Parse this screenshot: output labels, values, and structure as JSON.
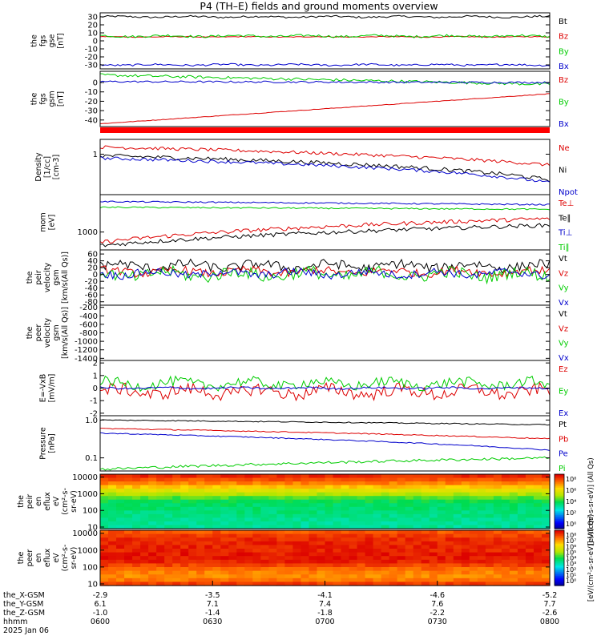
{
  "title": "P4 (TH–E) fields and ground moments overview",
  "x_axis": {
    "row_labels": [
      "the_X-GSM",
      "the_Y-GSM",
      "the_Z-GSM",
      "hhmm",
      "2025 Jan 06"
    ],
    "ticks": [
      {
        "x": "-2.9",
        "y": "6.1",
        "z": "-1.0",
        "t": "0600"
      },
      {
        "x": "-3.5",
        "y": "7.1",
        "z": "-1.4",
        "t": "0630"
      },
      {
        "x": "-4.1",
        "y": "7.4",
        "z": "-1.8",
        "t": "0700"
      },
      {
        "x": "-4.6",
        "y": "7.6",
        "z": "-2.2",
        "t": "0730"
      },
      {
        "x": "-5.2",
        "y": "7.7",
        "z": "-2.6",
        "t": "0800"
      }
    ]
  },
  "chart_data": [
    {
      "type": "line",
      "ylabel": [
        "the",
        "fgs",
        "gse",
        "[nT]"
      ],
      "ylim": [
        -35,
        35
      ],
      "yticks": [
        "30",
        "20",
        "10",
        "0",
        "-10",
        "-20",
        "-30"
      ],
      "ytick_values": [
        30,
        20,
        10,
        0,
        -10,
        -20,
        -30
      ],
      "series": [
        {
          "name": "Bt",
          "color": "#000000",
          "level": 30,
          "wiggle": 1.2
        },
        {
          "name": "Bz",
          "color": "#dd0000",
          "level": 5,
          "wiggle": 0.5
        },
        {
          "name": "By",
          "color": "#00cc00",
          "level": 6,
          "wiggle": 1.5
        },
        {
          "name": "Bx",
          "color": "#0000cc",
          "level": -30,
          "wiggle": 1.2
        }
      ]
    },
    {
      "type": "line",
      "ylabel": [
        "the",
        "fgs",
        "gsm",
        "[nT]"
      ],
      "ylim": [
        -47,
        12
      ],
      "yticks": [
        "0",
        "-10",
        "-20",
        "-30",
        "-40"
      ],
      "ytick_values": [
        0,
        -10,
        -20,
        -30,
        -40
      ],
      "series": [
        {
          "name": "Bz",
          "color": "#dd0000",
          "start": -44,
          "end": -12,
          "wiggle": 0.3
        },
        {
          "name": "By",
          "color": "#00cc00",
          "start": 8,
          "end": -2,
          "wiggle": 1.5
        },
        {
          "name": "Bx",
          "color": "#0000cc",
          "start": 1,
          "end": 0,
          "wiggle": 1.0
        }
      ]
    },
    {
      "type": "line",
      "ylabel": [
        "Density",
        "[1/cc]",
        "[cm-3]"
      ],
      "ylim": [
        0.05,
        3
      ],
      "yticks": [
        "1"
      ],
      "ytick_values": [
        1
      ],
      "series": [
        {
          "name": "Ne",
          "color": "#dd0000",
          "start": 1.7,
          "end": 0.45,
          "wiggle": 0.12
        },
        {
          "name": "Ni",
          "color": "#000000",
          "start": 0.9,
          "end": 0.15,
          "wiggle": 0.15
        },
        {
          "name": "Npot",
          "color": "#0000cc",
          "start": 0.75,
          "end": 0.12,
          "wiggle": 0.12
        }
      ]
    },
    {
      "type": "line",
      "ylabel": [
        "mom",
        "[eV]"
      ],
      "ylim": [
        350,
        9000
      ],
      "yticks": [
        "1000"
      ],
      "ytick_values": [
        1000
      ],
      "series": [
        {
          "name": "Te⊥",
          "color": "#dd0000",
          "start": 550,
          "end": 2200,
          "wiggle": 0.12
        },
        {
          "name": "Te∥",
          "color": "#000000",
          "start": 450,
          "end": 1500,
          "wiggle": 0.12
        },
        {
          "name": "Ti⊥",
          "color": "#0000cc",
          "start": 6000,
          "end": 5000,
          "wiggle": 0.04
        },
        {
          "name": "Ti∥",
          "color": "#00cc00",
          "start": 4300,
          "end": 3800,
          "wiggle": 0.04
        }
      ]
    },
    {
      "type": "line",
      "ylabel": [
        "the",
        "peir",
        "velocity",
        "gsm",
        "[km/s(All Qs)]"
      ],
      "ylim": [
        -90,
        72
      ],
      "yticks": [
        "60",
        "40",
        "20",
        "0",
        "-20",
        "-40",
        "-60",
        "-80"
      ],
      "ytick_values": [
        60,
        40,
        20,
        0,
        -20,
        -40,
        -60,
        -80
      ],
      "series": [
        {
          "name": "Vt",
          "color": "#000000",
          "level": 25,
          "wiggle": 14
        },
        {
          "name": "Vz",
          "color": "#dd0000",
          "level": 8,
          "wiggle": 12
        },
        {
          "name": "Vy",
          "color": "#00cc00",
          "level": 0,
          "wiggle": 18
        },
        {
          "name": "Vx",
          "color": "#0000cc",
          "level": 3,
          "wiggle": 12
        }
      ]
    },
    {
      "type": "line",
      "ylabel": [
        "the",
        "peer",
        "velocity",
        "gsm",
        "[km/s(All Qs)]"
      ],
      "ylim": [
        -1450,
        -150
      ],
      "yticks": [
        "-200",
        "-400",
        "-600",
        "-800",
        "-1000",
        "-1200",
        "-1400"
      ],
      "ytick_values": [
        -200,
        -400,
        -600,
        -800,
        -1000,
        -1200,
        -1400
      ],
      "series": [
        {
          "name": "Vt",
          "color": "#000000"
        },
        {
          "name": "Vz",
          "color": "#dd0000"
        },
        {
          "name": "Vy",
          "color": "#00cc00"
        },
        {
          "name": "Vx",
          "color": "#0000cc"
        }
      ]
    },
    {
      "type": "line",
      "ylabel": [
        "E=-VxB",
        "[mV/m]"
      ],
      "ylim": [
        -2.2,
        2.2
      ],
      "yticks": [
        "2",
        "1",
        "0",
        "-1",
        "-2"
      ],
      "ytick_values": [
        2,
        1,
        0,
        -1,
        -2
      ],
      "series": [
        {
          "name": "Ez",
          "color": "#dd0000",
          "level": -0.3,
          "wiggle": 0.5
        },
        {
          "name": "Ey",
          "color": "#00cc00",
          "level": 0.35,
          "wiggle": 0.4
        },
        {
          "name": "Ex",
          "color": "#0000cc",
          "level": 0.0,
          "wiggle": 0.08
        }
      ]
    },
    {
      "type": "line",
      "ylabel": [
        "Pressure",
        "[nPa]"
      ],
      "ylim": [
        0.045,
        1.3
      ],
      "yticks": [
        "1.0",
        "0.1"
      ],
      "ytick_values": [
        1.0,
        0.1
      ],
      "series": [
        {
          "name": "Pt",
          "color": "#000000",
          "start": 1.0,
          "end": 0.75,
          "wiggle": 0.03
        },
        {
          "name": "Pb",
          "color": "#dd0000",
          "start": 0.6,
          "end": 0.32,
          "wiggle": 0.03
        },
        {
          "name": "Pe",
          "color": "#0000cc",
          "start": 0.45,
          "end": 0.16,
          "wiggle": 0.03
        },
        {
          "name": "Pi",
          "color": "#00cc00",
          "start": 0.05,
          "end": 0.1,
          "wiggle": 0.08
        }
      ]
    },
    {
      "type": "heatmap",
      "ylabel": [
        "the",
        "peir",
        "en",
        "eflux",
        "eV",
        "(cm²-s-",
        "sr-eV)"
      ],
      "ylim": [
        8,
        15000
      ],
      "yticks": [
        "10000",
        "1000",
        "100",
        "10"
      ],
      "ytick_values": [
        10000,
        1000,
        100,
        10
      ],
      "colorbar_ticks": [
        "10⁸",
        "10⁶",
        "10⁴",
        "10²",
        "10⁰"
      ],
      "colorbar_title": "[eV/(cm²-s-sr-eV)] (All Qs)",
      "bands": [
        0.95,
        0.9,
        0.85,
        0.78,
        0.7,
        0.62,
        0.55,
        0.5,
        0.48,
        0.47,
        0.46,
        0.45,
        0.44,
        0.43,
        0.43
      ]
    },
    {
      "type": "heatmap",
      "ylabel": [
        "the",
        "peer",
        "en",
        "eflux",
        "eV",
        "(cm²-s-",
        "sr-eV)"
      ],
      "ylim": [
        8,
        15000
      ],
      "yticks": [
        "10000",
        "1000",
        "100",
        "10"
      ],
      "ytick_values": [
        10000,
        1000,
        100,
        10
      ],
      "colorbar_ticks": [
        "10⁸",
        "10⁷",
        "10⁶",
        "10⁵",
        "10⁴",
        "10³",
        "10²",
        "10¹",
        "10⁰"
      ],
      "colorbar_title": "[eV/(cm²-s-sr-eV)] (All Qs)",
      "bands": [
        0.9,
        0.93,
        0.95,
        0.96,
        0.96,
        0.96,
        0.97,
        0.97,
        0.96,
        0.92,
        0.88,
        0.85,
        0.84,
        0.86,
        0.93
      ]
    }
  ]
}
